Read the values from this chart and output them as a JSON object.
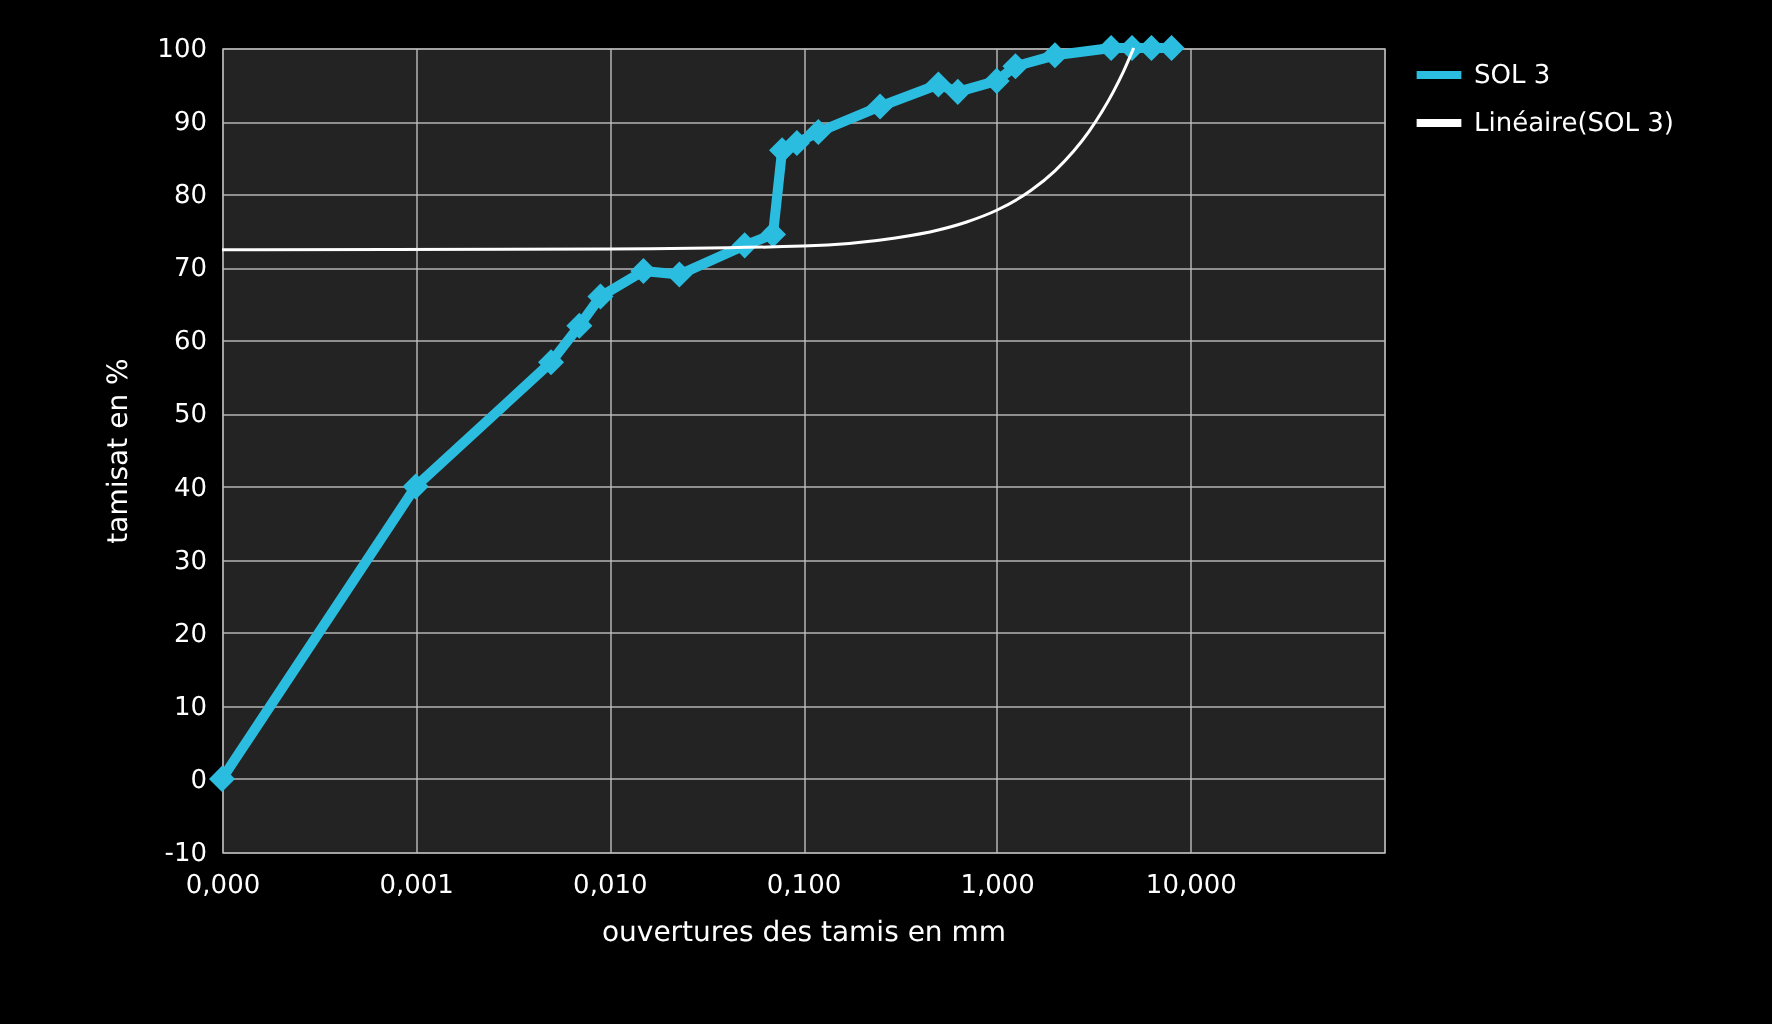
{
  "chart_data": {
    "type": "line",
    "xlabel": "ouvertures des tamis  en mm",
    "ylabel": "tamisat en %",
    "log": "x",
    "grid": true,
    "legend": "right",
    "xlim": [
      0.0001,
      100
    ],
    "ylim": [
      -10,
      100
    ],
    "xticks": [
      {
        "value": 0.0001,
        "label": "0,000"
      },
      {
        "value": 0.001,
        "label": "0,001"
      },
      {
        "value": 0.01,
        "label": "0,010"
      },
      {
        "value": 0.1,
        "label": "0,100"
      },
      {
        "value": 1,
        "label": "1,000"
      },
      {
        "value": 10,
        "label": "10,000"
      },
      {
        "value": 100,
        "label": null
      }
    ],
    "yticks": [
      -10,
      0,
      10,
      20,
      30,
      40,
      50,
      60,
      70,
      80,
      90,
      100
    ],
    "series": [
      {
        "name": "SOL 3",
        "color": "#2bbde0",
        "marker": "diamond",
        "x": [
          0.0001,
          0.001,
          0.005,
          0.007,
          0.009,
          0.015,
          0.023,
          0.05,
          0.07,
          0.078,
          0.093,
          0.12,
          0.25,
          0.5,
          0.63,
          1,
          1.25,
          2,
          3.9,
          5,
          6.3,
          8
        ],
        "values": [
          0,
          40,
          57,
          62,
          66,
          69.5,
          69,
          73,
          74.5,
          86,
          87,
          88.5,
          92,
          95,
          94,
          95.5,
          97.5,
          99,
          100,
          100,
          100,
          100
        ]
      },
      {
        "name": "Linéaire(SOL 3)",
        "color": "#ffffff",
        "marker": "none",
        "x": [
          0.0001,
          0.01,
          0.1,
          0.3,
          0.5,
          0.7,
          1,
          1.5,
          2,
          2.5,
          3,
          3.5,
          4,
          4.5,
          5.1
        ],
        "values": [
          72.4,
          72.5,
          72.9,
          74,
          75.1,
          76.2,
          77.8,
          80.5,
          83.2,
          85.9,
          88.6,
          91.3,
          94,
          96.7,
          100
        ]
      }
    ]
  }
}
